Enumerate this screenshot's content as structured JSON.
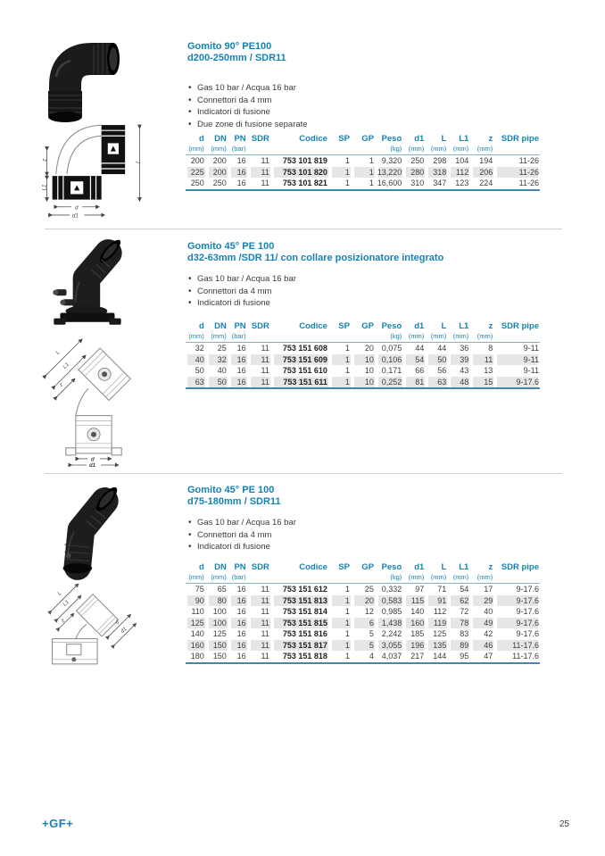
{
  "colors": {
    "accent_blue": "#1583b2",
    "table_rule_light": "#86aec6",
    "table_rule_bottom": "#4187ae",
    "row_shade": "#e6e6e6",
    "body_text": "#3c3c3c"
  },
  "table_columns": [
    {
      "label": "d",
      "unit": "(mm)"
    },
    {
      "label": "DN",
      "unit": "(mm)"
    },
    {
      "label": "PN",
      "unit": "(bar)"
    },
    {
      "label": "SDR",
      "unit": ""
    },
    {
      "label": "Codice",
      "unit": ""
    },
    {
      "label": "SP",
      "unit": ""
    },
    {
      "label": "GP",
      "unit": ""
    },
    {
      "label": "Peso",
      "unit": "(kg)"
    },
    {
      "label": "d1",
      "unit": "(mm)"
    },
    {
      "label": "L",
      "unit": "(mm)"
    },
    {
      "label": "L1",
      "unit": "(mm)"
    },
    {
      "label": "z",
      "unit": "(mm)"
    },
    {
      "label": "SDR pipe",
      "unit": ""
    }
  ],
  "sections": [
    {
      "title_line1": "Gomito 90° PE100",
      "title_line2": "d200-250mm / SDR11",
      "bullets": [
        "Gas 10 bar / Acqua 16 bar",
        "Connettori da 4 mm",
        "Indicatori di fusione",
        "Due zone di fusione separate"
      ],
      "drawing_labels": {
        "z": "z",
        "l1": "L1",
        "l": "L",
        "d": "d",
        "d1": "d1"
      },
      "table": {
        "rows": [
          [
            "200",
            "200",
            "16",
            "11",
            "753 101 819",
            "1",
            "1",
            "9,320",
            "250",
            "298",
            "104",
            "194",
            "11-26"
          ],
          [
            "225",
            "200",
            "16",
            "11",
            "753 101 820",
            "1",
            "1",
            "13,220",
            "280",
            "318",
            "112",
            "206",
            "11-26"
          ],
          [
            "250",
            "250",
            "16",
            "11",
            "753 101 821",
            "1",
            "1",
            "16,600",
            "310",
            "347",
            "123",
            "224",
            "11-26"
          ]
        ]
      }
    },
    {
      "title_line1": "Gomito 45° PE 100",
      "title_line2": "d32-63mm /SDR 11/ con collare posizionatore integrato",
      "bullets": [
        "Gas 10 bar / Acqua 16 bar",
        "Connettori da 4 mm",
        "Indicatori di fusione"
      ],
      "drawing_labels": {
        "l": "L",
        "l1": "L1",
        "z": "z",
        "d": "d",
        "d1": "d1"
      },
      "table": {
        "rows": [
          [
            "32",
            "25",
            "16",
            "11",
            "753 151 608",
            "1",
            "20",
            "0,075",
            "44",
            "44",
            "36",
            "8",
            "9-11"
          ],
          [
            "40",
            "32",
            "16",
            "11",
            "753 151 609",
            "1",
            "10",
            "0,106",
            "54",
            "50",
            "39",
            "11",
            "9-11"
          ],
          [
            "50",
            "40",
            "16",
            "11",
            "753 151 610",
            "1",
            "10",
            "0,171",
            "66",
            "56",
            "43",
            "13",
            "9-11"
          ],
          [
            "63",
            "50",
            "16",
            "11",
            "753 151 611",
            "1",
            "10",
            "0,252",
            "81",
            "63",
            "48",
            "15",
            "9-17.6"
          ]
        ]
      }
    },
    {
      "title_line1": "Gomito 45° PE 100",
      "title_line2": "d75-180mm / SDR11",
      "bullets": [
        "Gas 10 bar / Acqua 16 bar",
        "Connettori da 4 mm",
        "Indicatori di fusione"
      ],
      "drawing_labels": {
        "l": "L",
        "l1": "L1",
        "z": "z",
        "d": "d",
        "d1": "d1"
      },
      "table": {
        "rows": [
          [
            "75",
            "65",
            "16",
            "11",
            "753 151 612",
            "1",
            "25",
            "0,332",
            "97",
            "71",
            "54",
            "17",
            "9-17.6"
          ],
          [
            "90",
            "80",
            "16",
            "11",
            "753 151 813",
            "1",
            "20",
            "0,583",
            "115",
            "91",
            "62",
            "29",
            "9-17.6"
          ],
          [
            "110",
            "100",
            "16",
            "11",
            "753 151 814",
            "1",
            "12",
            "0,985",
            "140",
            "112",
            "72",
            "40",
            "9-17.6"
          ],
          [
            "125",
            "100",
            "16",
            "11",
            "753 151 815",
            "1",
            "6",
            "1,438",
            "160",
            "119",
            "78",
            "49",
            "9-17.6"
          ],
          [
            "140",
            "125",
            "16",
            "11",
            "753 151 816",
            "1",
            "5",
            "2,242",
            "185",
            "125",
            "83",
            "42",
            "9-17.6"
          ],
          [
            "160",
            "150",
            "16",
            "11",
            "753 151 817",
            "1",
            "5",
            "3,055",
            "196",
            "135",
            "89",
            "46",
            "11-17.6"
          ],
          [
            "180",
            "150",
            "16",
            "11",
            "753 151 818",
            "1",
            "4",
            "4,037",
            "217",
            "144",
            "95",
            "47",
            "11-17.6"
          ]
        ]
      }
    }
  ],
  "footer": {
    "logo": "+GF+",
    "page_number": "25"
  }
}
